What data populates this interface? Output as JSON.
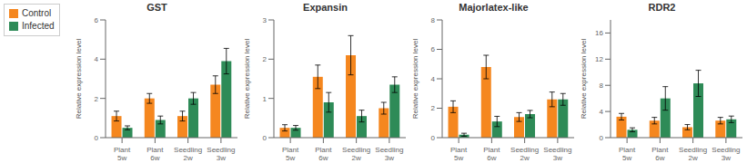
{
  "chart_data": [
    {
      "type": "bar",
      "title": "GST",
      "ylabel": "Relative expression level",
      "categories": [
        "Plant\n5w",
        "Plant\n6w",
        "Seedling\n2w",
        "Seedling\n3w"
      ],
      "series": [
        {
          "name": "Control",
          "color": "#F5871F",
          "values": [
            1.1,
            2.0,
            1.1,
            2.7
          ],
          "errors": [
            0.25,
            0.25,
            0.25,
            0.45
          ]
        },
        {
          "name": "Infected",
          "color": "#2E8B57",
          "values": [
            0.5,
            0.9,
            2.0,
            3.9
          ],
          "errors": [
            0.1,
            0.2,
            0.3,
            0.65
          ]
        }
      ],
      "ylim": [
        0,
        6
      ],
      "yticks": [
        0,
        2,
        4,
        6
      ],
      "legend": "upper left"
    },
    {
      "type": "bar",
      "title": "Expansin",
      "ylabel": "Relative expression level",
      "categories": [
        "Plant\n5w",
        "Plant\n6w",
        "Seedling\n2w",
        "Seedling\n3w"
      ],
      "series": [
        {
          "name": "Control",
          "color": "#F5871F",
          "values": [
            0.25,
            1.55,
            2.1,
            0.75
          ],
          "errors": [
            0.08,
            0.3,
            0.5,
            0.15
          ]
        },
        {
          "name": "Infected",
          "color": "#2E8B57",
          "values": [
            0.25,
            0.9,
            0.55,
            1.35
          ],
          "errors": [
            0.06,
            0.25,
            0.15,
            0.2
          ]
        }
      ],
      "ylim": [
        0,
        3
      ],
      "yticks": [
        0,
        1,
        2,
        3
      ]
    },
    {
      "type": "bar",
      "title": "Majorlatex-like",
      "ylabel": "Relative expression level",
      "categories": [
        "Plant\n5w",
        "Plant\n6w",
        "Seedling\n2w",
        "Seedling\n3w"
      ],
      "series": [
        {
          "name": "Control",
          "color": "#F5871F",
          "values": [
            2.1,
            4.8,
            1.4,
            2.6
          ],
          "errors": [
            0.4,
            0.8,
            0.3,
            0.5
          ]
        },
        {
          "name": "Infected",
          "color": "#2E8B57",
          "values": [
            0.2,
            1.1,
            1.6,
            2.6
          ],
          "errors": [
            0.1,
            0.35,
            0.25,
            0.4
          ]
        }
      ],
      "ylim": [
        0,
        8
      ],
      "yticks": [
        0,
        2,
        4,
        6,
        8
      ]
    },
    {
      "type": "bar",
      "title": "RDR2",
      "ylabel": "Relative expression level",
      "categories": [
        "Plant\n5w",
        "Plant\n6w",
        "Seedling\n2w",
        "Seedling\n3w"
      ],
      "series": [
        {
          "name": "Control",
          "color": "#F5871F",
          "values": [
            3.2,
            2.6,
            1.6,
            2.6
          ],
          "errors": [
            0.5,
            0.5,
            0.4,
            0.5
          ]
        },
        {
          "name": "Infected",
          "color": "#2E8B57",
          "values": [
            1.2,
            6.0,
            8.3,
            2.8
          ],
          "errors": [
            0.3,
            1.8,
            2.0,
            0.5
          ]
        }
      ],
      "ylim": [
        0,
        18
      ],
      "yticks": [
        0,
        4,
        8,
        12,
        16
      ]
    }
  ]
}
